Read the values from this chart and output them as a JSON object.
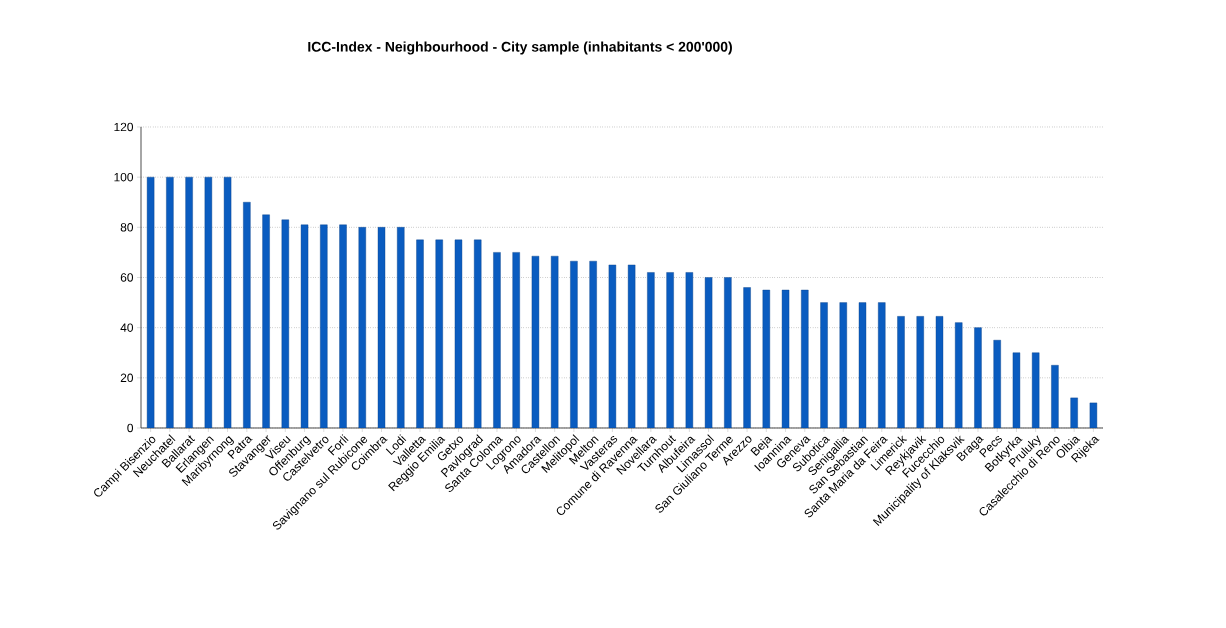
{
  "chart_data": {
    "type": "bar",
    "title": "ICC-Index - Neighbourhood - City sample (inhabitants < 200'000)",
    "categories": [
      "Campi Bisenzio",
      "Neuchatel",
      "Ballarat",
      "Erlangen",
      "Maribyrnong",
      "Patra",
      "Stavanger",
      "Viseu",
      "Offenburg",
      "Castelvetro",
      "Forli",
      "Savignano sul Rubicone",
      "Coimbra",
      "Lodi",
      "Valletta",
      "Reggio Emilia",
      "Getxo",
      "Pavlograd",
      "Santa Coloma",
      "Logrono",
      "Amadora",
      "Castellon",
      "Melitopol",
      "Melton",
      "Vasteras",
      "Comune di Ravenna",
      "Novellara",
      "Turnhout",
      "Albufeira",
      "Limassol",
      "San Giuliano Terme",
      "Arezzo",
      "Beja",
      "Ioannina",
      "Geneva",
      "Subotica",
      "Senigallia",
      "San Sebastian",
      "Santa Maria da Feira",
      "Limerick",
      "Reykjavik",
      "Fucecchio",
      "Municipality of Klaksvik",
      "Braga",
      "Pecs",
      "Botkyrka",
      "Pruluky",
      "Casalecchio di Reno",
      "Olbia",
      "Rijeka"
    ],
    "values": [
      100,
      100,
      100,
      100,
      100,
      90,
      85,
      83,
      81,
      81,
      81,
      80,
      80,
      80,
      75,
      75,
      75,
      75,
      70,
      70,
      68.5,
      68.5,
      66.5,
      66.5,
      65,
      65,
      62,
      62,
      62,
      60,
      60,
      56,
      55,
      55,
      55,
      50,
      50,
      50,
      50,
      44.5,
      44.5,
      44.5,
      42,
      40,
      35,
      30,
      30,
      25,
      12,
      10
    ],
    "color": "#0a5cc0",
    "ylim": [
      0,
      120
    ],
    "yticks": [
      0,
      20,
      40,
      60,
      80,
      100,
      120
    ],
    "grid": "y"
  }
}
